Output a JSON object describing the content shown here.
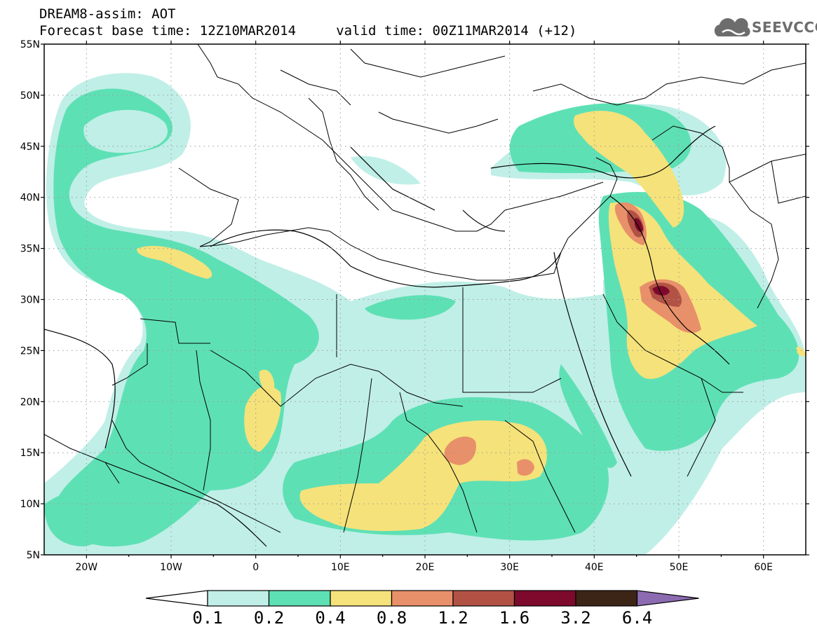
{
  "header": {
    "title_line1": "DREAM8-assim: AOT",
    "title_line2": "Forecast base time: 12Z10MAR2014     valid time: 00Z11MAR2014 (+12)"
  },
  "logo": {
    "text": "SEEVCCC",
    "icon": "cloud-icon"
  },
  "map": {
    "lat_labels": [
      "55N",
      "50N",
      "45N",
      "40N",
      "35N",
      "30N",
      "25N",
      "20N",
      "15N",
      "10N",
      "5N"
    ],
    "lon_labels": [
      "20W",
      "10W",
      "0",
      "10E",
      "20E",
      "30E",
      "40E",
      "50E",
      "60E"
    ],
    "lat_range": [
      5,
      55
    ],
    "lon_range": [
      -25,
      65
    ],
    "grid": "dotted"
  },
  "colorbar": {
    "labels": [
      "0.1",
      "0.2",
      "0.4",
      "0.8",
      "1.2",
      "1.6",
      "3.2",
      "6.4"
    ],
    "colors": [
      "#ffffff",
      "#c0efe7",
      "#5ee0b5",
      "#f5e27a",
      "#e8906a",
      "#b25244",
      "#7d0a2c",
      "#3c2416",
      "#8c6bb1"
    ]
  }
}
